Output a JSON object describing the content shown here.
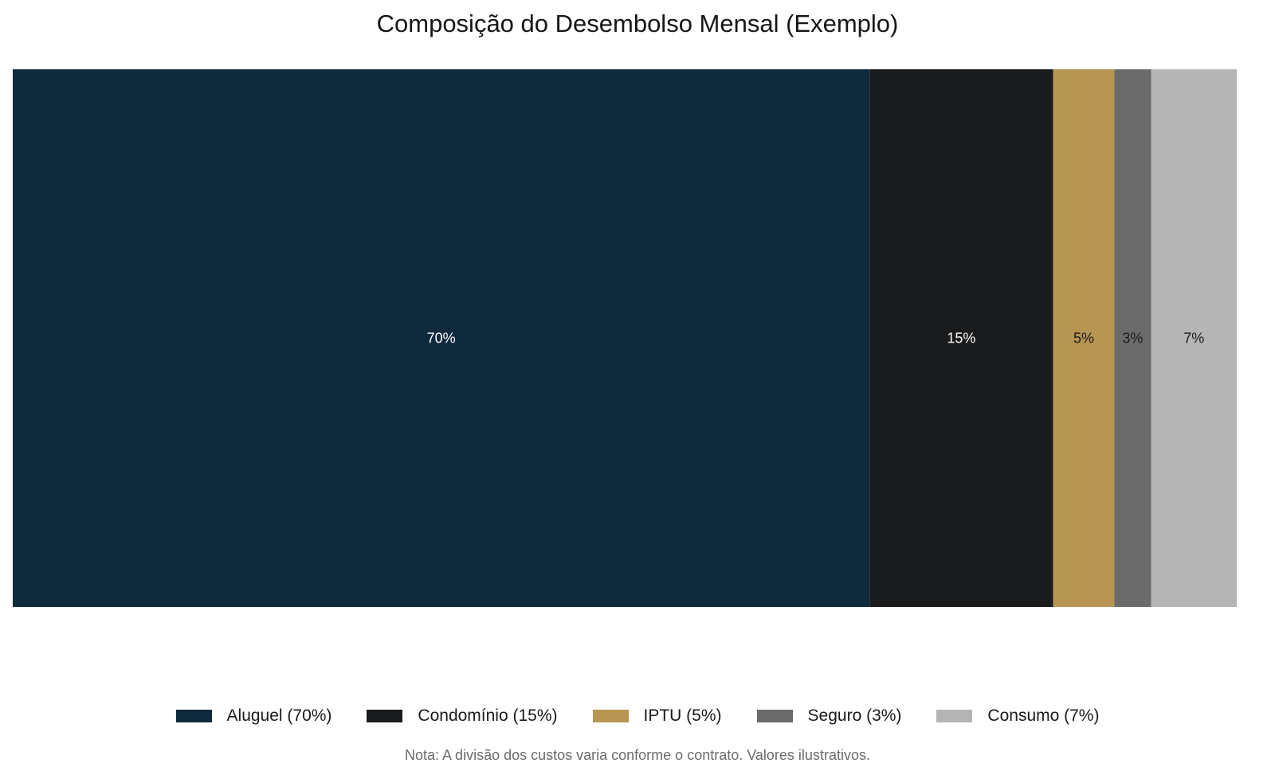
{
  "chart_data": {
    "type": "bar",
    "orientation": "horizontal-stacked",
    "title": "Composição do Desembolso Mensal (Exemplo)",
    "unit": "%",
    "categories": [
      "Aluguel",
      "Condomínio",
      "IPTU",
      "Seguro",
      "Consumo"
    ],
    "values": [
      70,
      15,
      5,
      3,
      7
    ],
    "data_labels": [
      "70%",
      "15%",
      "5%",
      "3%",
      "7%"
    ],
    "series": [
      {
        "name": "Aluguel (70%)",
        "value": 70,
        "color": "#0f2a3d",
        "label_color": "#ffffff"
      },
      {
        "name": "Condomínio (15%)",
        "value": 15,
        "color": "#1a1b1d",
        "label_color": "#ffffff"
      },
      {
        "name": "IPTU (5%)",
        "value": 5,
        "color": "#b79552",
        "label_color": "#1a1a1a"
      },
      {
        "name": "Seguro (3%)",
        "value": 3,
        "color": "#6b6b6b",
        "label_color": "#1a1a1a"
      },
      {
        "name": "Consumo (7%)",
        "value": 7,
        "color": "#b5b5b5",
        "label_color": "#1a1a1a"
      }
    ],
    "xlim": [
      0,
      100
    ],
    "grid": false,
    "legend_position": "bottom",
    "note": "Nota: A divisão dos custos varia conforme o contrato. Valores ilustrativos."
  }
}
